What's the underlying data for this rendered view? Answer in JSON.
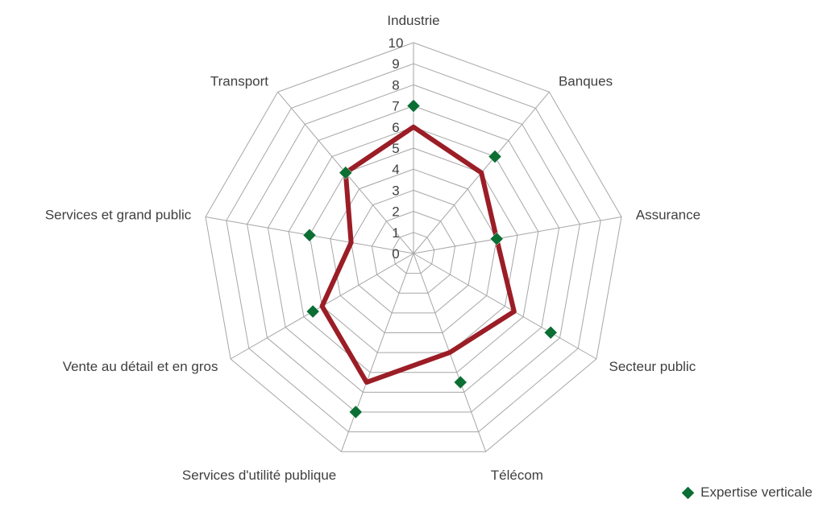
{
  "chart_data": {
    "type": "radar",
    "categories": [
      "Industrie",
      "Banques",
      "Assurance",
      "Secteur public",
      "Télécom",
      "Services d'utilité publique",
      "Vente au détail et en gros",
      "Services et grand public",
      "Transport"
    ],
    "rmin": 0,
    "rmax": 10,
    "ticks": [
      "0",
      "1",
      "2",
      "3",
      "4",
      "5",
      "6",
      "7",
      "8",
      "9",
      "10"
    ],
    "series": [
      {
        "values": [
          6,
          5,
          4,
          5.5,
          5,
          6.5,
          5,
          3,
          5
        ],
        "style": "line",
        "color": "#9b1d26"
      },
      {
        "name": "Expertise verticale",
        "values": [
          7,
          6,
          4,
          7.5,
          6.5,
          8,
          5.5,
          5,
          5
        ],
        "style": "marker",
        "color": "#0b6e33"
      }
    ],
    "grid": true,
    "legend": "bottom-right"
  },
  "colors": {
    "grid": "#a6a6a6",
    "text": "#404040"
  }
}
